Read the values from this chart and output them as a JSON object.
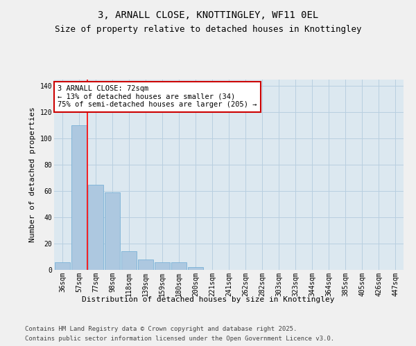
{
  "title_line1": "3, ARNALL CLOSE, KNOTTINGLEY, WF11 0EL",
  "title_line2": "Size of property relative to detached houses in Knottingley",
  "xlabel": "Distribution of detached houses by size in Knottingley",
  "ylabel": "Number of detached properties",
  "categories": [
    "36sqm",
    "57sqm",
    "77sqm",
    "98sqm",
    "118sqm",
    "139sqm",
    "159sqm",
    "180sqm",
    "200sqm",
    "221sqm",
    "241sqm",
    "262sqm",
    "282sqm",
    "303sqm",
    "323sqm",
    "344sqm",
    "364sqm",
    "385sqm",
    "405sqm",
    "426sqm",
    "447sqm"
  ],
  "values": [
    6,
    110,
    65,
    59,
    14,
    8,
    6,
    6,
    2,
    0,
    0,
    0,
    0,
    0,
    0,
    0,
    0,
    0,
    0,
    0,
    0
  ],
  "bar_color": "#adc8e0",
  "bar_edge_color": "#6aaad4",
  "red_line_x": 1.5,
  "annotation_text": "3 ARNALL CLOSE: 72sqm\n← 13% of detached houses are smaller (34)\n75% of semi-detached houses are larger (205) →",
  "annotation_box_color": "#ffffff",
  "annotation_box_edge": "#cc0000",
  "grid_color": "#b8cfe0",
  "background_color": "#dce8f0",
  "fig_background": "#f0f0f0",
  "ylim": [
    0,
    145
  ],
  "yticks": [
    0,
    20,
    40,
    60,
    80,
    100,
    120,
    140
  ],
  "footer_line1": "Contains HM Land Registry data © Crown copyright and database right 2025.",
  "footer_line2": "Contains public sector information licensed under the Open Government Licence v3.0.",
  "title_fontsize": 10,
  "subtitle_fontsize": 9,
  "axis_label_fontsize": 8,
  "tick_fontsize": 7,
  "footer_fontsize": 6.5,
  "annotation_fontsize": 7.5
}
